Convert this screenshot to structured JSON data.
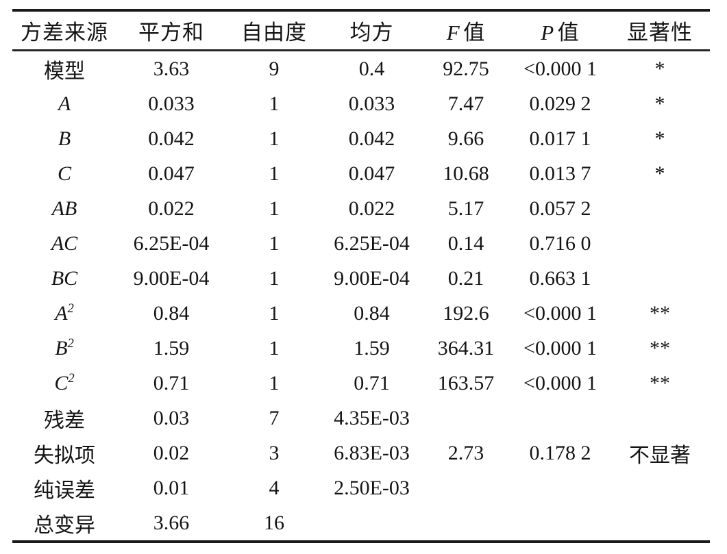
{
  "page": {
    "background_color": "#ffffff",
    "text_color": "#141414",
    "rule_color": "#1a1a1a"
  },
  "chart_data": {
    "type": "table",
    "description": "ANOVA table (方差分析)",
    "columns": [
      {
        "label": "方差来源"
      },
      {
        "label": "平方和"
      },
      {
        "label": "自由度"
      },
      {
        "label": "均方"
      },
      {
        "em": "F",
        "label": "值"
      },
      {
        "em": "P",
        "label": "值"
      },
      {
        "label": "显著性"
      }
    ],
    "rows": [
      {
        "source": "模型",
        "italic": false,
        "sup": "",
        "cells": [
          "3.63",
          "9",
          "0.4",
          "92.75",
          "<0.000 1",
          "*"
        ]
      },
      {
        "source": "A",
        "italic": true,
        "sup": "",
        "cells": [
          "0.033",
          "1",
          "0.033",
          "7.47",
          "0.029 2",
          "*"
        ]
      },
      {
        "source": "B",
        "italic": true,
        "sup": "",
        "cells": [
          "0.042",
          "1",
          "0.042",
          "9.66",
          "0.017 1",
          "*"
        ]
      },
      {
        "source": "C",
        "italic": true,
        "sup": "",
        "cells": [
          "0.047",
          "1",
          "0.047",
          "10.68",
          "0.013 7",
          "*"
        ]
      },
      {
        "source": "AB",
        "italic": true,
        "sup": "",
        "cells": [
          "0.022",
          "1",
          "0.022",
          "5.17",
          "0.057 2",
          ""
        ]
      },
      {
        "source": "AC",
        "italic": true,
        "sup": "",
        "cells": [
          "6.25E-04",
          "1",
          "6.25E-04",
          "0.14",
          "0.716 0",
          ""
        ]
      },
      {
        "source": "BC",
        "italic": true,
        "sup": "",
        "cells": [
          "9.00E-04",
          "1",
          "9.00E-04",
          "0.21",
          "0.663 1",
          ""
        ]
      },
      {
        "source": "A",
        "italic": true,
        "sup": "2",
        "cells": [
          "0.84",
          "1",
          "0.84",
          "192.6",
          "<0.000 1",
          "**"
        ]
      },
      {
        "source": "B",
        "italic": true,
        "sup": "2",
        "cells": [
          "1.59",
          "1",
          "1.59",
          "364.31",
          "<0.000 1",
          "**"
        ]
      },
      {
        "source": "C",
        "italic": true,
        "sup": "2",
        "cells": [
          "0.71",
          "1",
          "0.71",
          "163.57",
          "<0.000 1",
          "**"
        ]
      },
      {
        "source": "残差",
        "italic": false,
        "sup": "",
        "cells": [
          "0.03",
          "7",
          "4.35E-03",
          "",
          "",
          ""
        ]
      },
      {
        "source": "失拟项",
        "italic": false,
        "sup": "",
        "cells": [
          "0.02",
          "3",
          "6.83E-03",
          "2.73",
          "0.178 2",
          "不显著"
        ]
      },
      {
        "source": "纯误差",
        "italic": false,
        "sup": "",
        "cells": [
          "0.01",
          "4",
          "2.50E-03",
          "",
          "",
          ""
        ]
      },
      {
        "source": "总变异",
        "italic": false,
        "sup": "",
        "cells": [
          "3.66",
          "16",
          "",
          "",
          "",
          ""
        ]
      }
    ]
  }
}
